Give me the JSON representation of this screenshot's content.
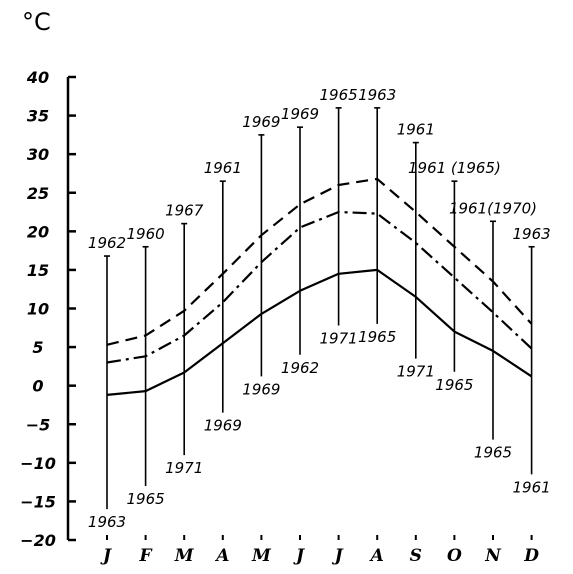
{
  "chart_data": {
    "type": "line",
    "title": "",
    "xlabel": "",
    "ylabel": "°C",
    "ylim": [
      -20,
      40
    ],
    "yticks": [
      40,
      35,
      30,
      25,
      20,
      15,
      10,
      5,
      0,
      -5,
      -10,
      -15,
      -20
    ],
    "categories": [
      "J",
      "F",
      "M",
      "A",
      "M",
      "J",
      "J",
      "A",
      "S",
      "O",
      "N",
      "D"
    ],
    "grid": false,
    "legend": "none",
    "series": [
      {
        "style": "dashed",
        "values": [
          5.3,
          6.5,
          9.7,
          14.5,
          19.5,
          23.5,
          26,
          26.8,
          22.5,
          18,
          13.5,
          8
        ]
      },
      {
        "style": "dash-dot",
        "values": [
          3,
          3.8,
          6.5,
          10.8,
          16,
          20.5,
          22.5,
          22.3,
          18.5,
          14,
          9.5,
          4.8
        ]
      },
      {
        "style": "solid",
        "values": [
          -1.2,
          -0.7,
          1.7,
          5.5,
          9.3,
          12.3,
          14.5,
          15,
          11.5,
          7,
          4.5,
          1.2
        ]
      }
    ],
    "max_records": [
      {
        "value": 16.8,
        "label": "1962"
      },
      {
        "value": 18,
        "label": "1960"
      },
      {
        "value": 21,
        "label": "1967"
      },
      {
        "value": 26.5,
        "label": "1961"
      },
      {
        "value": 32.5,
        "label": "1969"
      },
      {
        "value": 33.5,
        "label": "1969"
      },
      {
        "value": 36,
        "label": "1965"
      },
      {
        "value": 36,
        "label": "1963"
      },
      {
        "value": 31.5,
        "label": "1961"
      },
      {
        "value": 26.5,
        "label": "1961 (1965)"
      },
      {
        "value": 21.3,
        "label": "1961(1970)"
      },
      {
        "value": 18,
        "label": "1963"
      }
    ],
    "min_records": [
      {
        "value": -16,
        "label": "1963"
      },
      {
        "value": -13,
        "label": "1965"
      },
      {
        "value": -9,
        "label": "1971"
      },
      {
        "value": -3.5,
        "label": "1969"
      },
      {
        "value": 1.2,
        "label": "1969"
      },
      {
        "value": 4,
        "label": "1962"
      },
      {
        "value": 7.8,
        "label": "1971"
      },
      {
        "value": 8,
        "label": "1965"
      },
      {
        "value": 3.5,
        "label": "1971"
      },
      {
        "value": 1.8,
        "label": "1965"
      },
      {
        "value": -7,
        "label": "1965"
      },
      {
        "value": -11.5,
        "label": "1961"
      }
    ]
  }
}
